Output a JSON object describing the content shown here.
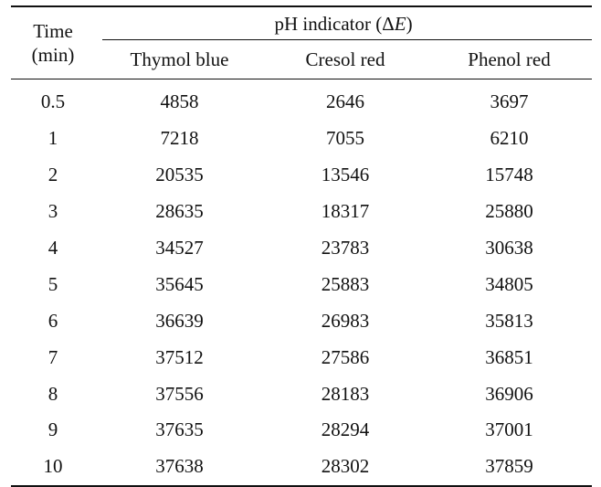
{
  "table": {
    "header": {
      "time_line1": "Time",
      "time_line2": "(min)",
      "group_prefix": "pH indicator (Δ",
      "group_symbol": "E",
      "group_suffix": ")",
      "columns": [
        "Thymol blue",
        "Cresol red",
        "Phenol red"
      ]
    },
    "rows": [
      {
        "time": "0.5",
        "values": [
          "4858",
          "2646",
          "3697"
        ]
      },
      {
        "time": "1",
        "values": [
          "7218",
          "7055",
          "6210"
        ]
      },
      {
        "time": "2",
        "values": [
          "20535",
          "13546",
          "15748"
        ]
      },
      {
        "time": "3",
        "values": [
          "28635",
          "18317",
          "25880"
        ]
      },
      {
        "time": "4",
        "values": [
          "34527",
          "23783",
          "30638"
        ]
      },
      {
        "time": "5",
        "values": [
          "35645",
          "25883",
          "34805"
        ]
      },
      {
        "time": "6",
        "values": [
          "36639",
          "26983",
          "35813"
        ]
      },
      {
        "time": "7",
        "values": [
          "37512",
          "27586",
          "36851"
        ]
      },
      {
        "time": "8",
        "values": [
          "37556",
          "28183",
          "36906"
        ]
      },
      {
        "time": "9",
        "values": [
          "37635",
          "28294",
          "37001"
        ]
      },
      {
        "time": "10",
        "values": [
          "37638",
          "28302",
          "37859"
        ]
      }
    ]
  }
}
